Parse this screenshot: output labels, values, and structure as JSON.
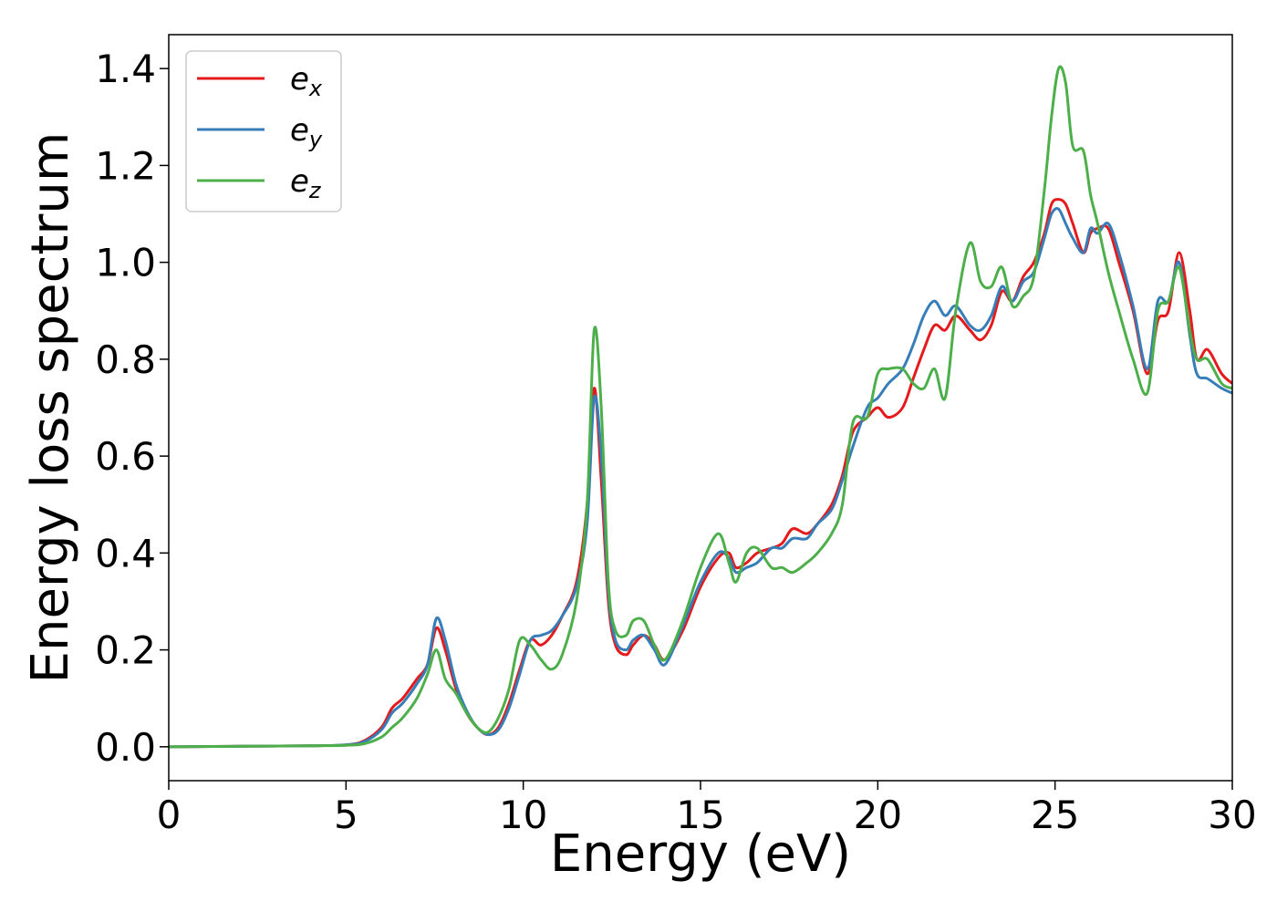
{
  "chart_data": {
    "type": "line",
    "title": "",
    "xlabel": "Energy (eV)",
    "ylabel": "Energy loss spectrum",
    "xlim": [
      0,
      30
    ],
    "ylim": [
      -0.07,
      1.47
    ],
    "xticks": [
      0,
      5,
      10,
      15,
      20,
      25,
      30
    ],
    "yticks": [
      0.0,
      0.2,
      0.4,
      0.6,
      0.8,
      1.0,
      1.2,
      1.4
    ],
    "xtick_labels": [
      "0",
      "5",
      "10",
      "15",
      "20",
      "25",
      "30"
    ],
    "ytick_labels": [
      "0.0",
      "0.2",
      "0.4",
      "0.6",
      "0.8",
      "1.0",
      "1.2",
      "1.4"
    ],
    "grid": false,
    "legend_position": "top-left",
    "series": [
      {
        "name": "e_x",
        "legend_base": "e",
        "legend_sub": "x",
        "color": "#e41a1c",
        "x": [
          0,
          2,
          4,
          5,
          5.5,
          6.0,
          6.3,
          6.6,
          7.0,
          7.3,
          7.55,
          7.8,
          8.1,
          8.4,
          8.7,
          9.0,
          9.3,
          9.6,
          9.9,
          10.2,
          10.5,
          10.8,
          11.1,
          11.5,
          11.8,
          12.0,
          12.2,
          12.4,
          12.6,
          12.9,
          13.1,
          13.4,
          13.7,
          14.0,
          14.5,
          15.0,
          15.5,
          15.8,
          16.0,
          16.3,
          16.6,
          17.0,
          17.3,
          17.6,
          18.0,
          18.3,
          18.7,
          19.0,
          19.3,
          19.7,
          20.0,
          20.3,
          20.7,
          21.0,
          21.3,
          21.6,
          21.9,
          22.2,
          22.6,
          22.9,
          23.2,
          23.5,
          23.8,
          24.1,
          24.4,
          24.7,
          24.9,
          25.1,
          25.3,
          25.5,
          25.8,
          26.0,
          26.2,
          26.5,
          26.8,
          27.2,
          27.6,
          27.9,
          28.2,
          28.5,
          28.8,
          29.0,
          29.3,
          29.7,
          30.0
        ],
        "y": [
          0.0,
          0.001,
          0.002,
          0.004,
          0.012,
          0.04,
          0.08,
          0.1,
          0.14,
          0.17,
          0.245,
          0.2,
          0.12,
          0.07,
          0.04,
          0.025,
          0.04,
          0.09,
          0.16,
          0.22,
          0.21,
          0.23,
          0.27,
          0.34,
          0.5,
          0.74,
          0.55,
          0.3,
          0.21,
          0.19,
          0.21,
          0.23,
          0.21,
          0.18,
          0.24,
          0.33,
          0.39,
          0.4,
          0.37,
          0.38,
          0.4,
          0.41,
          0.42,
          0.45,
          0.44,
          0.46,
          0.5,
          0.56,
          0.65,
          0.68,
          0.7,
          0.68,
          0.7,
          0.76,
          0.82,
          0.87,
          0.86,
          0.89,
          0.86,
          0.84,
          0.87,
          0.94,
          0.92,
          0.97,
          1.0,
          1.06,
          1.12,
          1.13,
          1.12,
          1.08,
          1.02,
          1.06,
          1.07,
          1.07,
          1.0,
          0.9,
          0.77,
          0.88,
          0.9,
          1.02,
          0.9,
          0.8,
          0.82,
          0.77,
          0.75
        ]
      },
      {
        "name": "e_y",
        "legend_base": "e",
        "legend_sub": "y",
        "color": "#377eb8",
        "x": [
          0,
          2,
          4,
          5,
          5.5,
          6.0,
          6.3,
          6.6,
          7.0,
          7.3,
          7.55,
          7.8,
          8.1,
          8.4,
          8.7,
          9.0,
          9.3,
          9.6,
          9.9,
          10.2,
          10.5,
          10.8,
          11.1,
          11.5,
          11.8,
          12.0,
          12.2,
          12.4,
          12.6,
          12.9,
          13.1,
          13.4,
          13.7,
          14.0,
          14.5,
          15.0,
          15.5,
          15.8,
          16.0,
          16.3,
          16.6,
          17.0,
          17.3,
          17.6,
          18.0,
          18.3,
          18.7,
          19.0,
          19.3,
          19.7,
          20.0,
          20.3,
          20.7,
          21.0,
          21.3,
          21.6,
          21.9,
          22.2,
          22.6,
          22.9,
          23.2,
          23.5,
          23.8,
          24.1,
          24.4,
          24.7,
          24.9,
          25.1,
          25.3,
          25.5,
          25.8,
          26.0,
          26.2,
          26.5,
          26.8,
          27.2,
          27.6,
          27.9,
          28.2,
          28.5,
          28.8,
          29.0,
          29.3,
          29.7,
          30.0
        ],
        "y": [
          0.0,
          0.001,
          0.002,
          0.004,
          0.01,
          0.035,
          0.07,
          0.09,
          0.13,
          0.17,
          0.265,
          0.22,
          0.13,
          0.075,
          0.04,
          0.025,
          0.035,
          0.08,
          0.15,
          0.22,
          0.23,
          0.24,
          0.27,
          0.33,
          0.46,
          0.72,
          0.6,
          0.32,
          0.22,
          0.2,
          0.22,
          0.23,
          0.2,
          0.17,
          0.25,
          0.34,
          0.4,
          0.39,
          0.36,
          0.37,
          0.38,
          0.41,
          0.41,
          0.43,
          0.43,
          0.46,
          0.49,
          0.55,
          0.62,
          0.7,
          0.72,
          0.75,
          0.78,
          0.83,
          0.89,
          0.92,
          0.89,
          0.91,
          0.87,
          0.86,
          0.89,
          0.95,
          0.92,
          0.96,
          0.98,
          1.05,
          1.1,
          1.11,
          1.08,
          1.05,
          1.02,
          1.07,
          1.06,
          1.08,
          1.02,
          0.91,
          0.78,
          0.92,
          0.92,
          1.0,
          0.85,
          0.77,
          0.76,
          0.74,
          0.73
        ]
      },
      {
        "name": "e_z",
        "legend_base": "e",
        "legend_sub": "z",
        "color": "#4daf4a",
        "x": [
          0,
          2,
          4,
          5,
          5.5,
          6.0,
          6.3,
          6.6,
          7.0,
          7.3,
          7.55,
          7.8,
          8.1,
          8.4,
          8.7,
          9.0,
          9.3,
          9.6,
          9.9,
          10.2,
          10.5,
          10.8,
          11.1,
          11.5,
          11.8,
          12.0,
          12.2,
          12.4,
          12.6,
          12.9,
          13.1,
          13.4,
          13.7,
          14.0,
          14.5,
          15.0,
          15.5,
          15.8,
          16.0,
          16.3,
          16.6,
          17.0,
          17.3,
          17.6,
          18.0,
          18.3,
          18.7,
          19.0,
          19.3,
          19.7,
          20.0,
          20.3,
          20.7,
          21.0,
          21.3,
          21.6,
          21.9,
          22.2,
          22.6,
          22.9,
          23.2,
          23.5,
          23.8,
          24.1,
          24.4,
          24.7,
          24.9,
          25.1,
          25.3,
          25.5,
          25.8,
          26.0,
          26.2,
          26.5,
          26.8,
          27.2,
          27.6,
          27.9,
          28.2,
          28.5,
          28.8,
          29.0,
          29.3,
          29.7,
          30.0
        ],
        "y": [
          0.0,
          0.001,
          0.002,
          0.003,
          0.006,
          0.02,
          0.04,
          0.06,
          0.1,
          0.15,
          0.2,
          0.14,
          0.11,
          0.07,
          0.04,
          0.03,
          0.06,
          0.12,
          0.22,
          0.21,
          0.18,
          0.16,
          0.19,
          0.3,
          0.5,
          0.86,
          0.7,
          0.34,
          0.24,
          0.23,
          0.26,
          0.26,
          0.21,
          0.18,
          0.26,
          0.37,
          0.44,
          0.38,
          0.34,
          0.4,
          0.41,
          0.37,
          0.37,
          0.36,
          0.38,
          0.4,
          0.44,
          0.5,
          0.67,
          0.68,
          0.77,
          0.78,
          0.78,
          0.75,
          0.74,
          0.78,
          0.72,
          0.9,
          1.04,
          0.96,
          0.95,
          0.99,
          0.91,
          0.93,
          0.97,
          1.15,
          1.3,
          1.4,
          1.37,
          1.24,
          1.23,
          1.14,
          1.08,
          0.98,
          0.9,
          0.8,
          0.73,
          0.9,
          0.92,
          0.99,
          0.86,
          0.8,
          0.8,
          0.75,
          0.74
        ]
      }
    ]
  }
}
